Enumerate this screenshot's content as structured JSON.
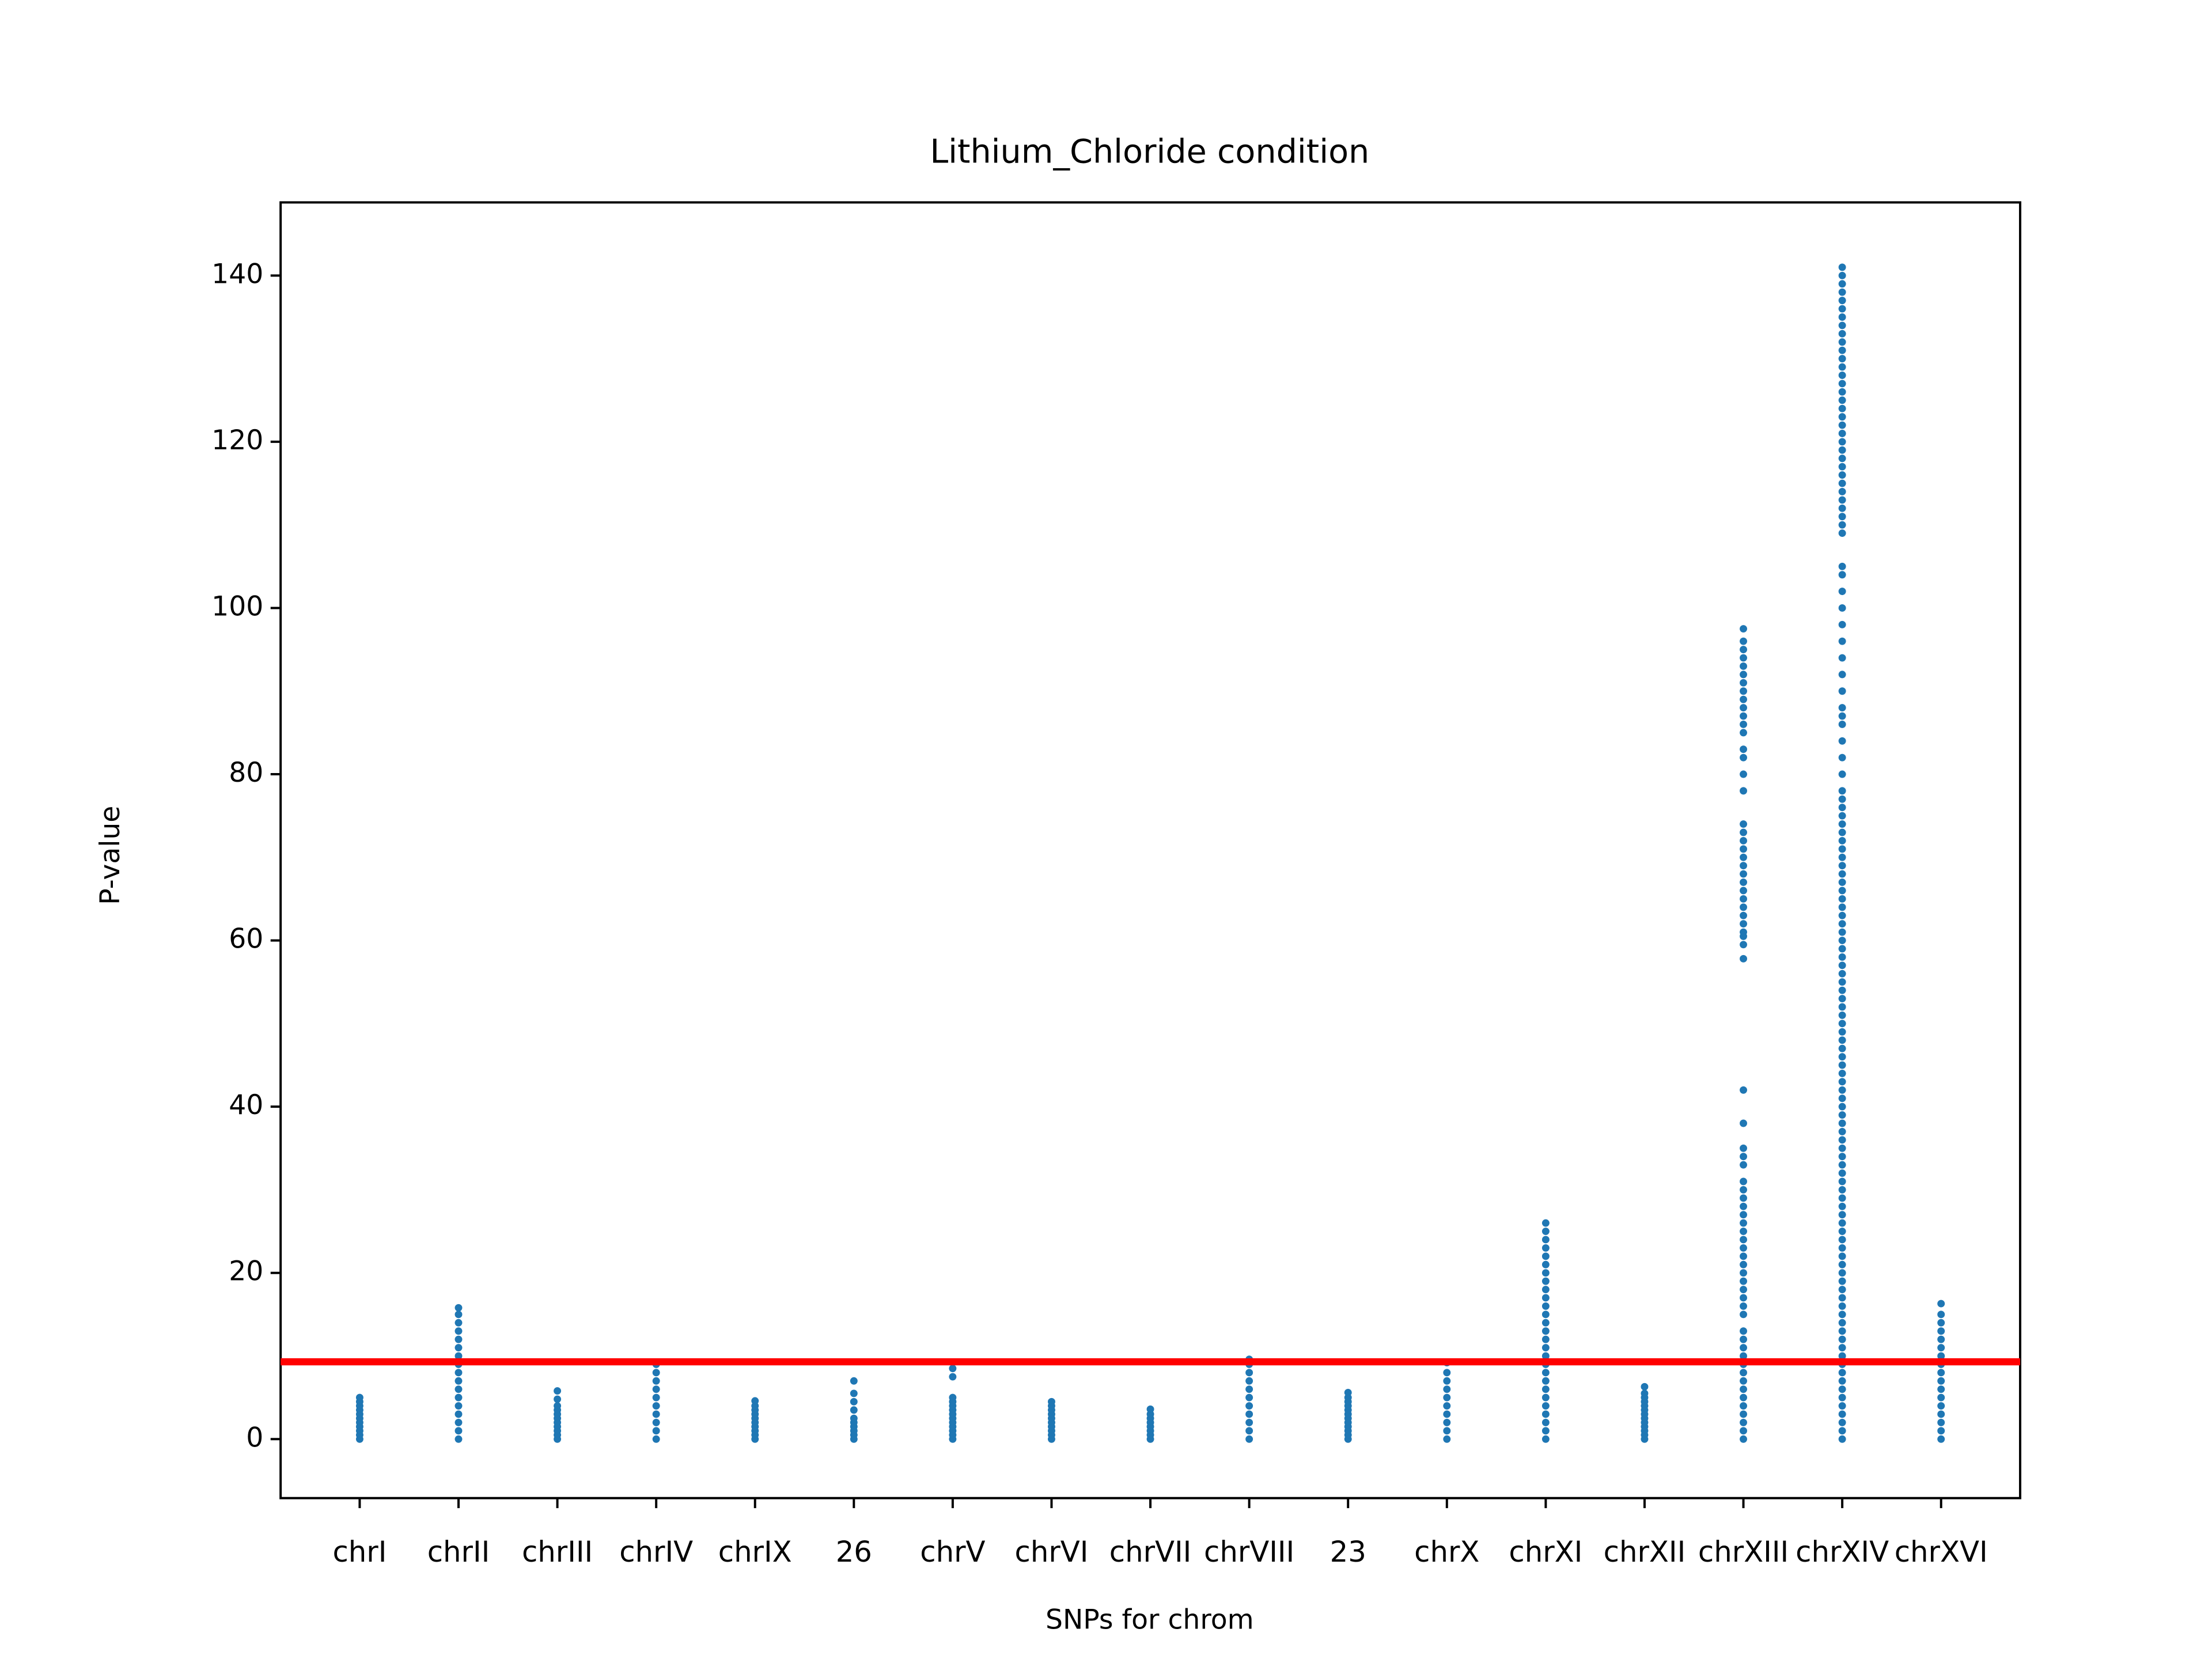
{
  "chart_data": {
    "type": "strip",
    "title": "Lithium_Chloride condition",
    "x_label": "SNPs for chrom",
    "y_label": "P-value",
    "color": "#1f77b4",
    "ylim": [
      -7.1,
      148.8
    ],
    "yticks": [
      0,
      20,
      40,
      60,
      80,
      100,
      120,
      140
    ],
    "threshold": {
      "value": 9.3,
      "color": "#ff0000"
    },
    "groups": [
      {
        "name": "chrI",
        "values": [
          0,
          0.5,
          1,
          1.5,
          2,
          2.5,
          3,
          3.5,
          4,
          4.5,
          5
        ]
      },
      {
        "name": "chrII",
        "values": [
          0,
          1,
          2,
          3,
          4,
          5,
          6,
          7,
          8,
          9,
          10,
          11,
          12,
          13,
          14,
          15,
          15.8
        ]
      },
      {
        "name": "chrIII",
        "values": [
          0,
          0.5,
          1,
          1.5,
          2,
          2.5,
          3,
          3.5,
          4,
          4.8,
          5.8
        ]
      },
      {
        "name": "chrIV",
        "values": [
          0,
          1,
          2,
          3,
          4,
          5,
          6,
          7,
          8,
          9
        ]
      },
      {
        "name": "chrIX",
        "values": [
          0,
          0.5,
          1,
          1.5,
          2,
          2.5,
          3,
          3.5,
          4,
          4.6
        ]
      },
      {
        "name": "26",
        "values": [
          0,
          0.5,
          1,
          1.5,
          2,
          2.5,
          3.5,
          4.5,
          5.5,
          7
        ]
      },
      {
        "name": "chrV",
        "values": [
          0,
          0.5,
          1,
          1.5,
          2,
          2.5,
          3,
          3.5,
          4,
          4.5,
          5,
          7.5,
          8.5
        ]
      },
      {
        "name": "chrVI",
        "values": [
          0,
          0.5,
          1,
          1.5,
          2,
          2.5,
          3,
          3.5,
          4,
          4.5
        ]
      },
      {
        "name": "chrVII",
        "values": [
          0,
          0.5,
          1,
          1.5,
          2,
          2.5,
          3,
          3.6
        ]
      },
      {
        "name": "chrVIII",
        "values": [
          0,
          1,
          2,
          3,
          4,
          5,
          6,
          7,
          8,
          9,
          9.6
        ]
      },
      {
        "name": "23",
        "values": [
          0,
          0.5,
          1,
          1.5,
          2,
          2.5,
          3,
          3.5,
          4,
          4.5,
          5,
          5.6
        ]
      },
      {
        "name": "chrX",
        "values": [
          0,
          1,
          2,
          3,
          4,
          5,
          6,
          7,
          8,
          9.2
        ]
      },
      {
        "name": "chrXI",
        "values": [
          0,
          1,
          2,
          3,
          4,
          5,
          6,
          7,
          8,
          9,
          10,
          11,
          12,
          13,
          14,
          15,
          16,
          17,
          18,
          19,
          20,
          21,
          22,
          23,
          24,
          25,
          26
        ]
      },
      {
        "name": "chrXII",
        "values": [
          0,
          0.5,
          1,
          1.5,
          2,
          2.5,
          3,
          3.5,
          4,
          4.5,
          5,
          5.5,
          6.3
        ]
      },
      {
        "name": "chrXIII",
        "values": [
          0,
          1,
          2,
          3,
          4,
          5,
          6,
          7,
          8,
          9,
          10,
          11,
          12,
          13,
          15,
          16,
          17,
          18,
          19,
          20,
          21,
          22,
          23,
          24,
          25,
          26,
          27,
          28,
          29,
          30,
          31,
          33,
          34,
          35,
          38,
          42,
          57.8,
          59.5,
          60.5,
          61,
          62,
          63,
          64,
          65,
          66,
          67,
          68,
          69,
          70,
          71,
          72,
          73,
          74,
          78,
          80,
          82,
          83,
          85,
          86,
          87,
          88,
          89,
          90,
          91,
          92,
          93,
          94,
          95,
          96,
          97.5
        ]
      },
      {
        "name": "chrXIV",
        "values": [
          0,
          1,
          2,
          3,
          4,
          5,
          6,
          7,
          8,
          9,
          10,
          11,
          12,
          13,
          14,
          15,
          16,
          17,
          18,
          19,
          20,
          21,
          22,
          23,
          24,
          25,
          26,
          27,
          28,
          29,
          30,
          31,
          32,
          33,
          34,
          35,
          36,
          37,
          38,
          39,
          40,
          41,
          42,
          43,
          44,
          45,
          46,
          47,
          48,
          49,
          50,
          51,
          52,
          53,
          54,
          55,
          56,
          57,
          58,
          59,
          60,
          61,
          62,
          63,
          64,
          65,
          66,
          67,
          68,
          69,
          70,
          71,
          72,
          73,
          74,
          75,
          76,
          77,
          78,
          80,
          82,
          84,
          86,
          87,
          88,
          90,
          92,
          94,
          96,
          98,
          100,
          102,
          104,
          105,
          109,
          110,
          111,
          112,
          113,
          114,
          115,
          116,
          117,
          118,
          119,
          120,
          121,
          122,
          123,
          124,
          125,
          126,
          127,
          128,
          129,
          130,
          131,
          132,
          133,
          134,
          135,
          136,
          137,
          138,
          139,
          140,
          141
        ]
      },
      {
        "name": "chrXVI",
        "values": [
          0,
          1,
          2,
          3,
          4,
          5,
          6,
          7,
          8,
          9,
          10,
          11,
          12,
          13,
          14,
          15,
          16.3
        ]
      }
    ]
  }
}
